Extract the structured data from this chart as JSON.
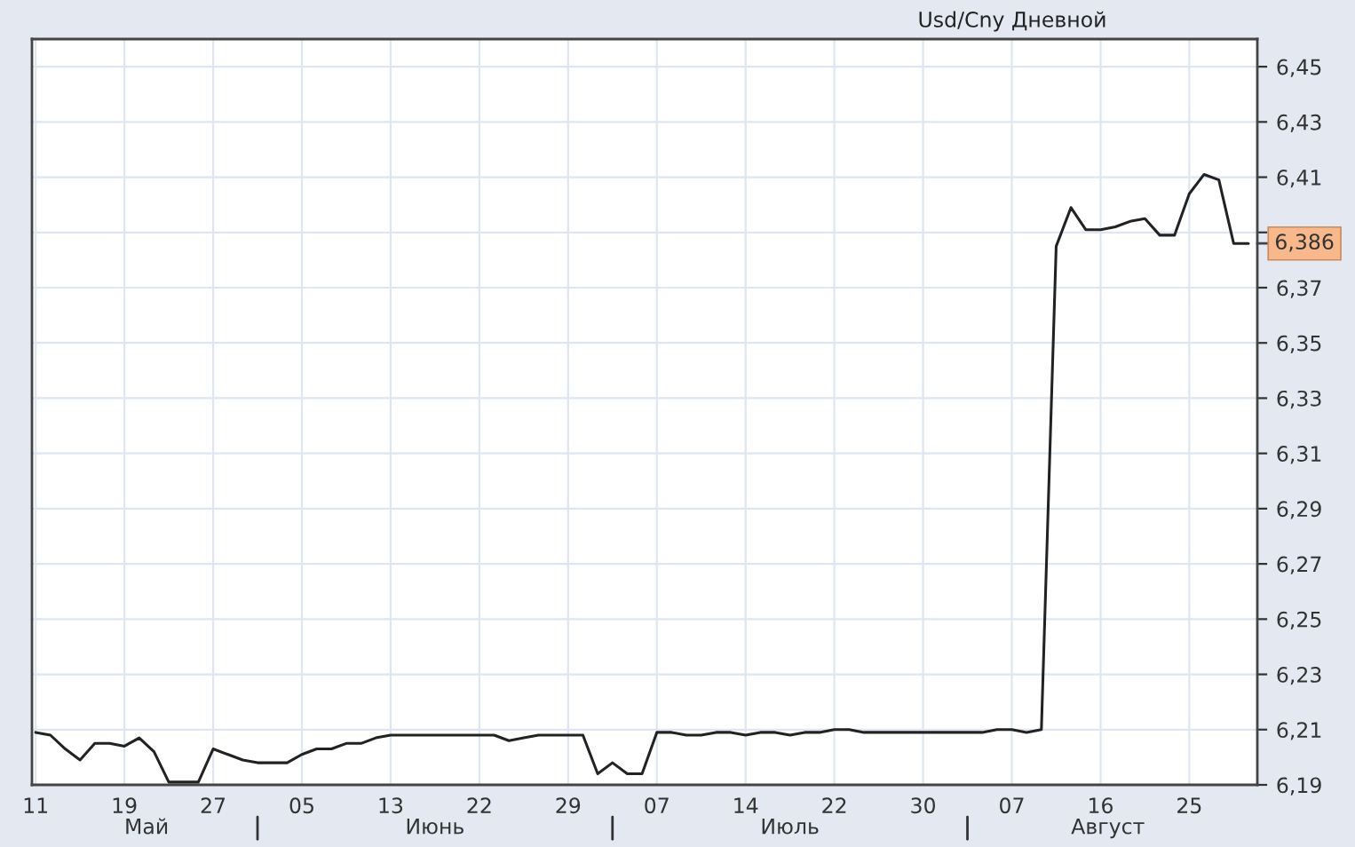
{
  "chart_data": {
    "type": "line",
    "title": "Usd/Cny Дневной",
    "categories": [
      "11",
      null,
      null,
      null,
      null,
      null,
      "19",
      null,
      null,
      null,
      null,
      null,
      "27",
      null,
      null,
      null,
      null,
      null,
      "05",
      null,
      null,
      null,
      null,
      null,
      "13",
      null,
      null,
      null,
      null,
      null,
      "22",
      null,
      null,
      null,
      null,
      null,
      "29",
      null,
      null,
      null,
      null,
      null,
      "07",
      null,
      null,
      null,
      null,
      null,
      "14",
      null,
      null,
      null,
      null,
      null,
      "22",
      null,
      null,
      null,
      null,
      null,
      "30",
      null,
      null,
      null,
      null,
      null,
      "07",
      null,
      null,
      null,
      null,
      null,
      "16",
      null,
      null,
      null,
      null,
      null,
      "25",
      null,
      null,
      null,
      null
    ],
    "series": [
      {
        "color": "#222222",
        "values": [
          6.209,
          6.208,
          6.203,
          6.199,
          6.205,
          6.205,
          6.204,
          6.207,
          6.202,
          6.191,
          6.191,
          6.191,
          6.203,
          6.201,
          6.199,
          6.198,
          6.198,
          6.198,
          6.201,
          6.203,
          6.203,
          6.205,
          6.205,
          6.207,
          6.208,
          6.208,
          6.208,
          6.208,
          6.208,
          6.208,
          6.208,
          6.208,
          6.206,
          6.207,
          6.208,
          6.208,
          6.208,
          6.208,
          6.194,
          6.198,
          6.194,
          6.194,
          6.209,
          6.209,
          6.208,
          6.208,
          6.209,
          6.209,
          6.208,
          6.209,
          6.209,
          6.208,
          6.209,
          6.209,
          6.21,
          6.21,
          6.209,
          6.209,
          6.209,
          6.209,
          6.209,
          6.209,
          6.209,
          6.209,
          6.209,
          6.21,
          6.21,
          6.209,
          6.21,
          6.385,
          6.399,
          6.391,
          6.391,
          6.392,
          6.394,
          6.395,
          6.389,
          6.389,
          6.404,
          6.411,
          6.409,
          6.386,
          6.386
        ]
      }
    ],
    "ylim": [
      6.19,
      6.46
    ],
    "yticks": [
      {
        "value": 6.19,
        "label": "6,19"
      },
      {
        "value": 6.21,
        "label": "6,21"
      },
      {
        "value": 6.23,
        "label": "6,23"
      },
      {
        "value": 6.25,
        "label": "6,25"
      },
      {
        "value": 6.27,
        "label": "6,27"
      },
      {
        "value": 6.29,
        "label": "6,29"
      },
      {
        "value": 6.31,
        "label": "6,31"
      },
      {
        "value": 6.33,
        "label": "6,33"
      },
      {
        "value": 6.35,
        "label": "6,35"
      },
      {
        "value": 6.37,
        "label": "6,37"
      },
      {
        "value": 6.39,
        "label": null
      },
      {
        "value": 6.41,
        "label": "6,41"
      },
      {
        "value": 6.43,
        "label": "6,43"
      },
      {
        "value": 6.45,
        "label": "6,45"
      }
    ],
    "annotations": [
      "Май",
      "Июнь",
      "Июль",
      "Август",
      "6,386"
    ],
    "grid": true,
    "legend": false,
    "marker": "none",
    "line_style": "solid"
  }
}
